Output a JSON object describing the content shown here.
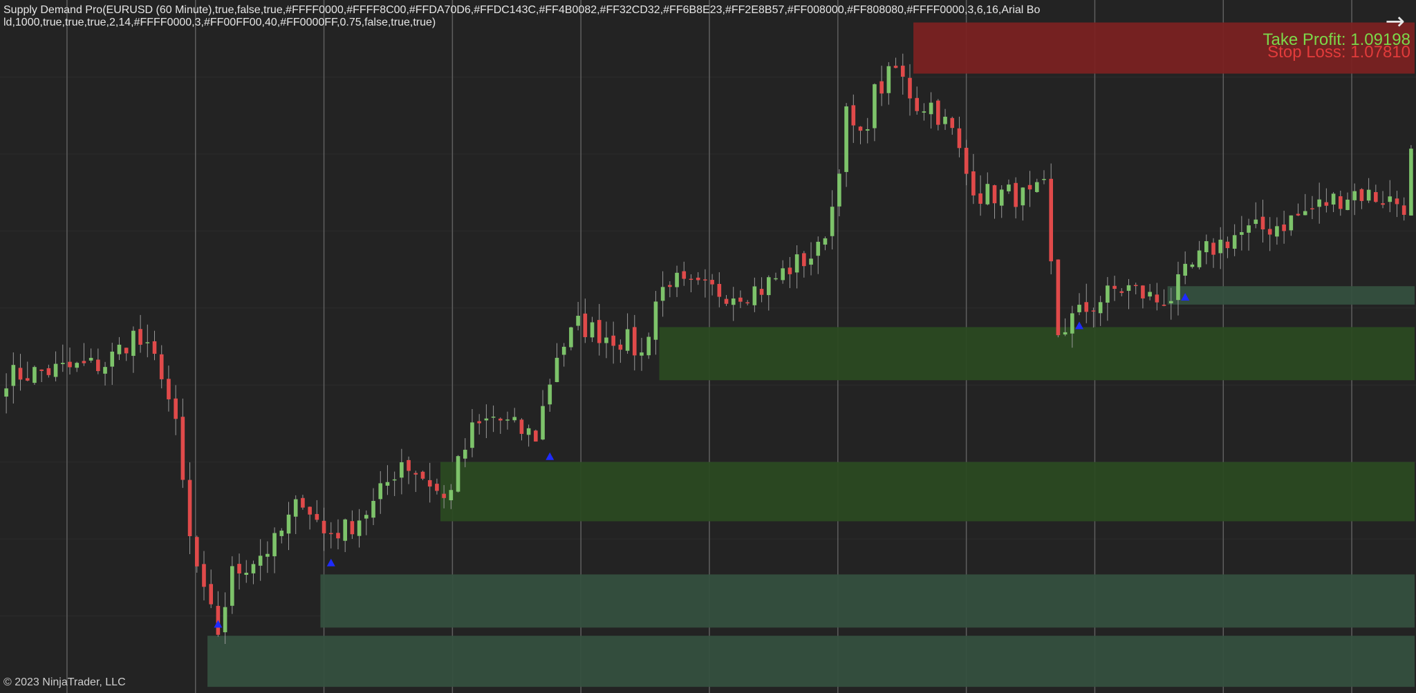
{
  "header": {
    "indicator_text": "Supply Demand Pro(EURUSD (60 Minute),true,false,true,#FFFF0000,#FFFF8C00,#FFDA70D6,#FFDC143C,#FF4B0082,#FF32CD32,#FF6B8E23,#FF2E8B57,#FF008000,#FF808080,#FFFF0000,3,6,16,Arial Bold,1000,true,true,true,2,14,#FFFF0000,3,#FF00FF00,40,#FF0000FF,0.75,false,true,true)"
  },
  "labels": {
    "take_profit": "Take Profit: 1.09198",
    "stop_loss": "Stop Loss: 1.07810",
    "copyright": "© 2023 NinjaTrader, LLC"
  },
  "icons": {
    "scroll_arrow": "arrow-right-icon"
  },
  "colors": {
    "background": "#232323",
    "gridline": "#5f5f5f",
    "bull_candle": "#7dc36a",
    "bear_candle": "#e04a4a",
    "wick": "#9a9a9a",
    "supply_zone": "#7a2222",
    "demand_zone_strong": "#2b4a22",
    "demand_zone_weak": "#35503f",
    "signal_marker": "#1e2bff",
    "take_profit_text": "#7cd84a",
    "stop_loss_text": "#e23b3b"
  },
  "chart_data": {
    "type": "candlestick",
    "symbol": "EURUSD",
    "timeframe": "60 Minute",
    "ylim": [
      1.0592,
      1.0931
    ],
    "bar_count": 200,
    "close_path": [
      [
        0,
        1.0747
      ],
      [
        14,
        1.0753
      ],
      [
        18,
        1.0767
      ],
      [
        22,
        1.075
      ],
      [
        24,
        1.0721
      ],
      [
        26,
        1.0667
      ],
      [
        28,
        1.0639
      ],
      [
        30,
        1.0622
      ],
      [
        32,
        1.065
      ],
      [
        38,
        1.0665
      ],
      [
        42,
        1.0688
      ],
      [
        45,
        1.067
      ],
      [
        48,
        1.0672
      ],
      [
        52,
        1.0684
      ],
      [
        56,
        1.0706
      ],
      [
        60,
        1.0695
      ],
      [
        62,
        1.0686
      ],
      [
        66,
        1.072
      ],
      [
        69,
        1.0727
      ],
      [
        73,
        1.072
      ],
      [
        75,
        1.0718
      ],
      [
        78,
        1.0758
      ],
      [
        81,
        1.0772
      ],
      [
        85,
        1.0767
      ],
      [
        88,
        1.0764
      ],
      [
        90,
        1.0757
      ],
      [
        92,
        1.0784
      ],
      [
        94,
        1.0795
      ],
      [
        96,
        1.079
      ],
      [
        99,
        1.0789
      ],
      [
        103,
        1.0788
      ],
      [
        107,
        1.079
      ],
      [
        111,
        1.08
      ],
      [
        115,
        1.0808
      ],
      [
        117,
        1.083
      ],
      [
        119,
        1.0874
      ],
      [
        121,
        1.0862
      ],
      [
        123,
        1.0885
      ],
      [
        126,
        1.0897
      ],
      [
        129,
        1.088
      ],
      [
        131,
        1.088
      ],
      [
        134,
        1.0866
      ],
      [
        136,
        1.0846
      ],
      [
        138,
        1.0836
      ],
      [
        142,
        1.0836
      ],
      [
        145,
        1.0834
      ],
      [
        147,
        1.0838
      ],
      [
        148,
        1.08
      ],
      [
        149,
        1.0768
      ],
      [
        151,
        1.0775
      ],
      [
        154,
        1.0782
      ],
      [
        157,
        1.0789
      ],
      [
        159,
        1.079
      ],
      [
        163,
        1.0784
      ],
      [
        165,
        1.0786
      ],
      [
        167,
        1.0796
      ],
      [
        170,
        1.0808
      ],
      [
        174,
        1.0816
      ],
      [
        178,
        1.0819
      ],
      [
        181,
        1.0822
      ],
      [
        184,
        1.0827
      ],
      [
        187,
        1.0832
      ],
      [
        191,
        1.0837
      ],
      [
        195,
        1.0834
      ],
      [
        198,
        1.0831
      ],
      [
        199,
        1.0855
      ]
    ],
    "zones": [
      {
        "kind": "supply",
        "start_bar": 129,
        "ymin": 1.0895,
        "ymax": 1.092
      },
      {
        "kind": "demand",
        "start_bar": 165,
        "ymin": 1.0782,
        "ymax": 1.0791
      },
      {
        "kind": "demand",
        "start_bar": 93,
        "ymin": 1.0745,
        "ymax": 1.0771
      },
      {
        "kind": "demand",
        "start_bar": 62,
        "ymin": 1.0676,
        "ymax": 1.0705
      },
      {
        "kind": "demand",
        "start_bar": 45,
        "ymin": 1.0624,
        "ymax": 1.065
      },
      {
        "kind": "demand",
        "start_bar": 29,
        "ymin": 1.0595,
        "ymax": 1.062
      }
    ],
    "signals": [
      {
        "bar": 30,
        "price": 1.0626
      },
      {
        "bar": 46,
        "price": 1.0656
      },
      {
        "bar": 77,
        "price": 1.0708
      },
      {
        "bar": 152,
        "price": 1.0772
      },
      {
        "bar": 167,
        "price": 1.0786
      }
    ],
    "vertical_gridline_count": 11,
    "horizontal_gridline_count": 8,
    "grid": true,
    "take_profit": 1.09198,
    "stop_loss": 1.0781
  }
}
